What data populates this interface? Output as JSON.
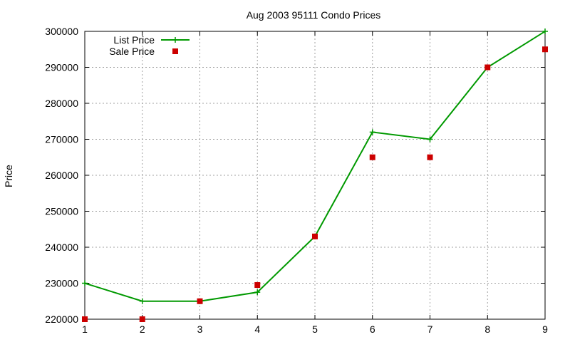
{
  "chart_data": {
    "type": "line",
    "title": "Aug 2003 95111 Condo Prices",
    "ylabel": "Price",
    "xlabel": "",
    "x": [
      1,
      2,
      3,
      4,
      5,
      6,
      7,
      8,
      9
    ],
    "xlim": [
      1,
      9
    ],
    "ylim": [
      220000,
      300000
    ],
    "xticks": [
      "1",
      "2",
      "3",
      "4",
      "5",
      "6",
      "7",
      "8",
      "9"
    ],
    "yticks": [
      "220000",
      "230000",
      "240000",
      "250000",
      "260000",
      "270000",
      "280000",
      "290000",
      "300000"
    ],
    "grid": true,
    "legend_position": "top-left",
    "series": [
      {
        "name": "List Price",
        "style": "linespoints",
        "marker": "plus",
        "color": "#009900",
        "values": [
          230000,
          225000,
          225000,
          227500,
          243000,
          272000,
          270000,
          290000,
          300000
        ]
      },
      {
        "name": "Sale Price",
        "style": "points",
        "marker": "square",
        "color": "#cc0000",
        "values": [
          220000,
          220000,
          225000,
          229500,
          243000,
          265000,
          265000,
          290000,
          295000
        ]
      }
    ]
  }
}
